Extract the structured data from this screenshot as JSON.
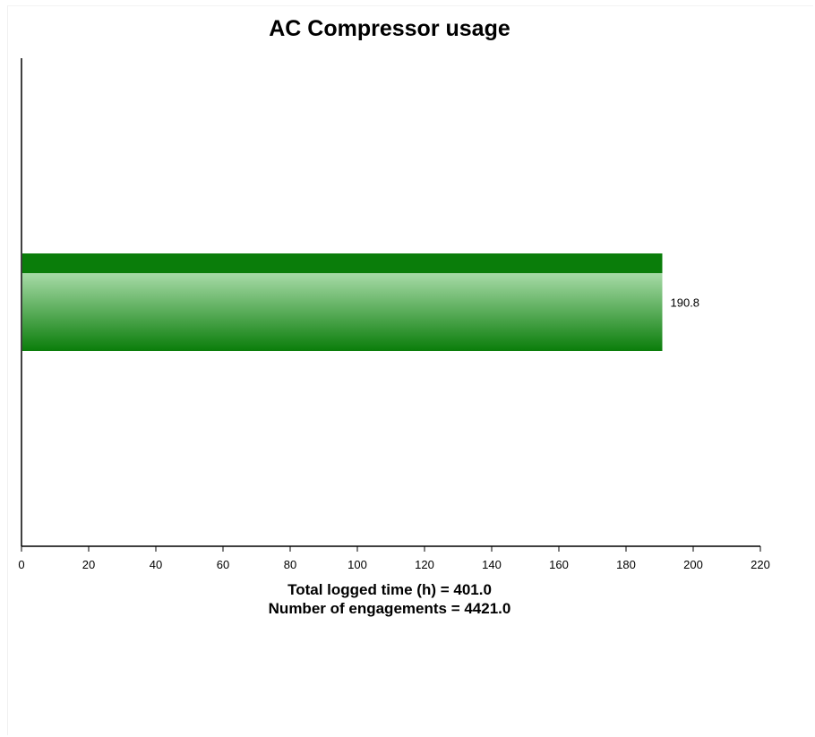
{
  "chart_data": {
    "type": "bar",
    "orientation": "horizontal",
    "title": "AC Compressor usage",
    "xlabel": "",
    "ylabel": "",
    "categories": [
      ""
    ],
    "values": [
      190.8
    ],
    "value_labels": [
      "190.8"
    ],
    "xlim": [
      0,
      220
    ],
    "ticks": [
      0,
      20,
      40,
      60,
      80,
      100,
      120,
      140,
      160,
      180,
      200,
      220
    ],
    "tick_labels": [
      "0",
      "20",
      "40",
      "60",
      "80",
      "100",
      "120",
      "140",
      "160",
      "180",
      "200",
      "220"
    ],
    "grid": false,
    "bar_color": "#0a7d0a",
    "bar_highlight_color": "#a8dba8",
    "summary": [
      "Total logged time (h) = 401.0",
      "Number of engagements = 4421.0"
    ]
  }
}
